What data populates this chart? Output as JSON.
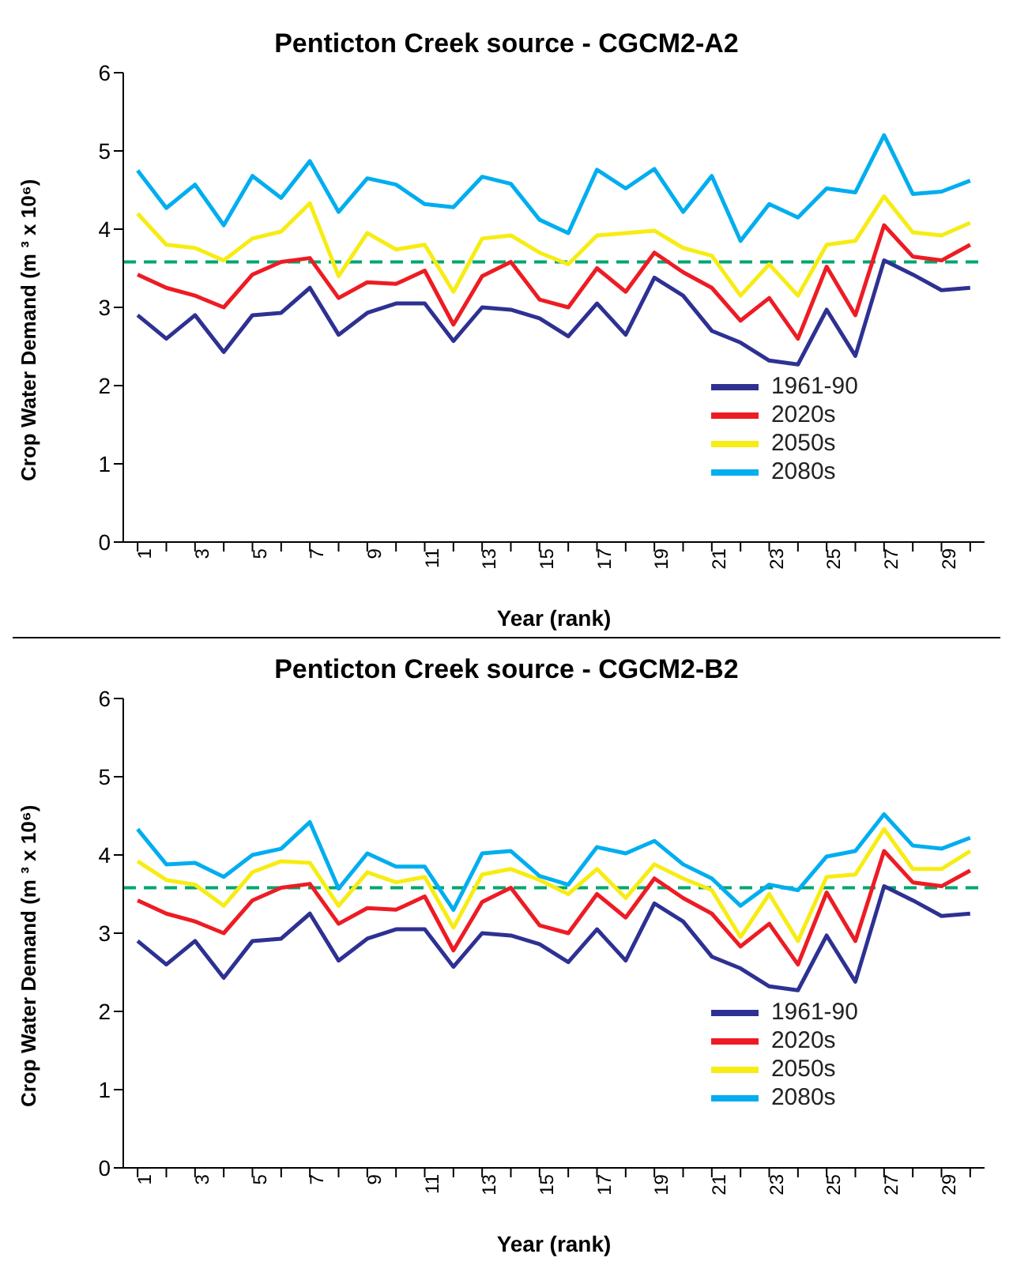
{
  "chart_data": [
    {
      "type": "line",
      "title": "Penticton Creek source - CGCM2-A2",
      "xlabel": "Year (rank)",
      "ylabel": "Crop Water Demand (m ³ x 10⁶)",
      "categories": [
        "1",
        null,
        "3",
        null,
        "5",
        null,
        "7",
        null,
        "9",
        null,
        "11",
        null,
        "13",
        null,
        "15",
        null,
        "17",
        null,
        "19",
        null,
        "21",
        null,
        "23",
        null,
        "25",
        null,
        "27",
        null,
        "29",
        null
      ],
      "series": [
        {
          "name": "1961-90",
          "color": "#2e3192",
          "values": [
            2.9,
            2.6,
            2.9,
            2.43,
            2.9,
            2.93,
            3.25,
            2.65,
            2.93,
            3.05,
            3.05,
            2.57,
            3.0,
            2.97,
            2.86,
            2.63,
            3.05,
            2.65,
            3.38,
            3.15,
            2.7,
            2.55,
            2.32,
            2.27,
            2.97,
            2.38,
            3.6,
            3.42,
            3.22,
            3.25
          ]
        },
        {
          "name": "2020s",
          "color": "#ed1c24",
          "values": [
            3.42,
            3.25,
            3.15,
            3.0,
            3.42,
            3.58,
            3.63,
            3.12,
            3.32,
            3.3,
            3.47,
            2.78,
            3.4,
            3.58,
            3.1,
            3.0,
            3.5,
            3.2,
            3.7,
            3.45,
            3.25,
            2.83,
            3.12,
            2.6,
            3.52,
            2.9,
            4.05,
            3.65,
            3.6,
            3.8
          ]
        },
        {
          "name": "2050s",
          "color": "#f7ec13",
          "values": [
            4.2,
            3.8,
            3.76,
            3.6,
            3.88,
            3.97,
            4.33,
            3.4,
            3.95,
            3.74,
            3.8,
            3.2,
            3.88,
            3.92,
            3.7,
            3.55,
            3.92,
            3.95,
            3.98,
            3.76,
            3.66,
            3.15,
            3.55,
            3.15,
            3.8,
            3.85,
            4.42,
            3.96,
            3.92,
            4.08
          ]
        },
        {
          "name": "2080s",
          "color": "#00aeef",
          "values": [
            4.75,
            4.27,
            4.57,
            4.05,
            4.68,
            4.4,
            4.87,
            4.22,
            4.65,
            4.57,
            4.32,
            4.28,
            4.67,
            4.58,
            4.12,
            3.95,
            4.76,
            4.52,
            4.77,
            4.22,
            4.68,
            3.85,
            4.32,
            4.15,
            4.52,
            4.47,
            5.2,
            4.45,
            4.48,
            4.62
          ]
        }
      ],
      "ylim": [
        0,
        6
      ],
      "yticks": [
        0,
        1,
        2,
        3,
        4,
        5,
        6
      ],
      "grid": false,
      "legend": "bottom right",
      "marker": "none",
      "ref_lines": [
        {
          "axis": "y",
          "value": 3.58,
          "color": "#00a66e",
          "line_style": "dashed"
        }
      ]
    },
    {
      "type": "line",
      "title": "Penticton Creek source - CGCM2-B2",
      "xlabel": "Year (rank)",
      "ylabel": "Crop Water Demand (m ³ x 10⁶)",
      "categories": [
        "1",
        null,
        "3",
        null,
        "5",
        null,
        "7",
        null,
        "9",
        null,
        "11",
        null,
        "13",
        null,
        "15",
        null,
        "17",
        null,
        "19",
        null,
        "21",
        null,
        "23",
        null,
        "25",
        null,
        "27",
        null,
        "29",
        null
      ],
      "series": [
        {
          "name": "1961-90",
          "color": "#2e3192",
          "values": [
            2.9,
            2.6,
            2.9,
            2.43,
            2.9,
            2.93,
            3.25,
            2.65,
            2.93,
            3.05,
            3.05,
            2.57,
            3.0,
            2.97,
            2.86,
            2.63,
            3.05,
            2.65,
            3.38,
            3.15,
            2.7,
            2.55,
            2.32,
            2.27,
            2.97,
            2.38,
            3.6,
            3.42,
            3.22,
            3.25
          ]
        },
        {
          "name": "2020s",
          "color": "#ed1c24",
          "values": [
            3.42,
            3.25,
            3.15,
            3.0,
            3.42,
            3.58,
            3.63,
            3.12,
            3.32,
            3.3,
            3.47,
            2.78,
            3.4,
            3.58,
            3.1,
            3.0,
            3.5,
            3.2,
            3.7,
            3.45,
            3.25,
            2.83,
            3.12,
            2.6,
            3.52,
            2.9,
            4.05,
            3.65,
            3.6,
            3.8
          ]
        },
        {
          "name": "2050s",
          "color": "#f7ec13",
          "values": [
            3.92,
            3.68,
            3.62,
            3.35,
            3.78,
            3.92,
            3.9,
            3.35,
            3.78,
            3.65,
            3.72,
            3.07,
            3.75,
            3.82,
            3.68,
            3.5,
            3.82,
            3.45,
            3.88,
            3.7,
            3.55,
            2.95,
            3.5,
            2.9,
            3.72,
            3.75,
            4.33,
            3.82,
            3.82,
            4.05
          ]
        },
        {
          "name": "2080s",
          "color": "#00aeef",
          "values": [
            4.33,
            3.88,
            3.9,
            3.72,
            4.0,
            4.08,
            4.42,
            3.57,
            4.02,
            3.85,
            3.85,
            3.3,
            4.02,
            4.05,
            3.73,
            3.62,
            4.1,
            4.02,
            4.18,
            3.88,
            3.7,
            3.35,
            3.62,
            3.55,
            3.98,
            4.05,
            4.52,
            4.12,
            4.08,
            4.22
          ]
        }
      ],
      "ylim": [
        0,
        6
      ],
      "yticks": [
        0,
        1,
        2,
        3,
        4,
        5,
        6
      ],
      "grid": false,
      "legend": "bottom right",
      "marker": "none",
      "ref_lines": [
        {
          "axis": "y",
          "value": 3.58,
          "color": "#00a66e",
          "line_style": "dashed"
        }
      ]
    }
  ]
}
